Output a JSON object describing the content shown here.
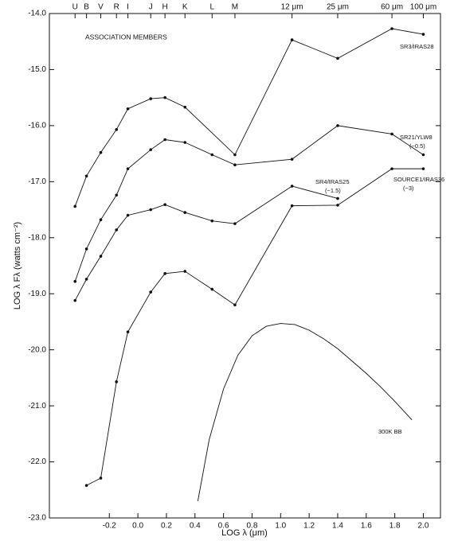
{
  "chart_data": {
    "type": "line",
    "annotation": "ASSOCIATION MEMBERS",
    "xlabel": "LOG λ (μm)",
    "ylabel": "LOG λ Fλ (watts cm⁻²)",
    "xlim": [
      -0.62,
      2.12
    ],
    "ylim": [
      -23,
      -14
    ],
    "xticks": [
      -0.2,
      {
        "value": 0,
        "label": "0.0"
      },
      0.2,
      0.4,
      0.6,
      0.8,
      {
        "value": 1,
        "label": "1.0"
      },
      1.2,
      1.4,
      1.6,
      1.8,
      {
        "value": 2,
        "label": "2.0"
      }
    ],
    "yticks": [
      {
        "value": -14,
        "label": "-14.0"
      },
      {
        "value": -15,
        "label": "-15.0"
      },
      {
        "value": -16,
        "label": "-16.0"
      },
      {
        "value": -17,
        "label": "-17.0"
      },
      {
        "value": -18,
        "label": "-18.0"
      },
      {
        "value": -19,
        "label": "-19.0"
      },
      {
        "value": -20,
        "label": "-20.0"
      },
      {
        "value": -21,
        "label": "-21.0"
      },
      {
        "value": -22,
        "label": "-22.0"
      },
      {
        "value": -23,
        "label": "-23.0"
      }
    ],
    "top_ticks": [
      {
        "value": -0.44,
        "label": "U"
      },
      {
        "value": -0.36,
        "label": "B"
      },
      {
        "value": -0.26,
        "label": "V"
      },
      {
        "value": -0.15,
        "label": "R"
      },
      {
        "value": -0.07,
        "label": "I"
      },
      {
        "value": 0.09,
        "label": "J"
      },
      {
        "value": 0.19,
        "label": "H"
      },
      {
        "value": 0.33,
        "label": "K"
      },
      {
        "value": 0.52,
        "label": "L"
      },
      {
        "value": 0.68,
        "label": "M"
      },
      {
        "value": 1.08,
        "label": "12 μm"
      },
      {
        "value": 1.4,
        "label": "25 μm"
      },
      {
        "value": 1.78,
        "label": "60 μm"
      },
      {
        "value": 2.0,
        "label": "100 μm"
      }
    ],
    "color": "#111111",
    "series": [
      {
        "name": "SR3/IRAS28",
        "markers": true,
        "x": [
          -0.44,
          -0.36,
          -0.26,
          -0.15,
          -0.07,
          0.09,
          0.19,
          0.33,
          0.68,
          1.08,
          1.4,
          1.78,
          2.0
        ],
        "values": [
          -17.44,
          -16.9,
          -16.48,
          -16.07,
          -15.7,
          -15.52,
          -15.5,
          -15.67,
          -16.52,
          -14.47,
          -14.8,
          -14.27,
          -14.37
        ]
      },
      {
        "name": "SR21/YLW8",
        "offset": "(−0.5)",
        "markers": true,
        "x": [
          -0.44,
          -0.36,
          -0.26,
          -0.15,
          -0.07,
          0.09,
          0.19,
          0.33,
          0.52,
          0.68,
          1.08,
          1.4,
          1.78,
          2.0
        ],
        "values": [
          -18.78,
          -18.2,
          -17.68,
          -17.24,
          -16.77,
          -16.43,
          -16.25,
          -16.3,
          -16.52,
          -16.7,
          -16.6,
          -16.0,
          -16.15,
          -16.52
        ]
      },
      {
        "name": "SR4/IRAS25",
        "offset": "(−1.5)",
        "markers": true,
        "x": [
          -0.44,
          -0.36,
          -0.26,
          -0.15,
          -0.07,
          0.09,
          0.19,
          0.33,
          0.52,
          0.68,
          1.08,
          1.4
        ],
        "values": [
          -19.12,
          -18.74,
          -18.33,
          -17.86,
          -17.6,
          -17.5,
          -17.41,
          -17.55,
          -17.7,
          -17.75,
          -17.08,
          -17.3
        ]
      },
      {
        "name": "SOURCE1/IRAS36",
        "offset": "(−3)",
        "markers": true,
        "x": [
          -0.36,
          -0.26,
          -0.15,
          -0.07,
          0.09,
          0.19,
          0.33,
          0.52,
          0.68,
          1.08,
          1.4,
          1.78,
          2.0
        ],
        "values": [
          -22.42,
          -22.29,
          -20.57,
          -19.68,
          -18.97,
          -18.64,
          -18.6,
          -18.92,
          -19.2,
          -17.43,
          -17.42,
          -16.77,
          -16.77
        ]
      },
      {
        "name": "300K BB",
        "markers": false,
        "x": [
          0.42,
          0.5,
          0.6,
          0.7,
          0.8,
          0.9,
          1.0,
          1.1,
          1.2,
          1.3,
          1.4,
          1.5,
          1.6,
          1.7,
          1.8,
          1.92
        ],
        "values": [
          -22.7,
          -21.6,
          -20.7,
          -20.1,
          -19.75,
          -19.58,
          -19.53,
          -19.55,
          -19.65,
          -19.8,
          -19.98,
          -20.2,
          -20.42,
          -20.66,
          -20.92,
          -21.25
        ]
      }
    ]
  }
}
